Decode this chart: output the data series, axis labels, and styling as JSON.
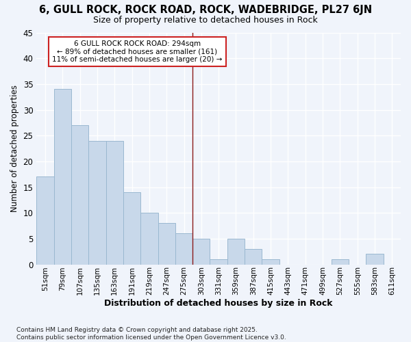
{
  "title1": "6, GULL ROCK, ROCK ROAD, ROCK, WADEBRIDGE, PL27 6JN",
  "title2": "Size of property relative to detached houses in Rock",
  "xlabel": "Distribution of detached houses by size in Rock",
  "ylabel": "Number of detached properties",
  "categories": [
    "51sqm",
    "79sqm",
    "107sqm",
    "135sqm",
    "163sqm",
    "191sqm",
    "219sqm",
    "247sqm",
    "275sqm",
    "303sqm",
    "331sqm",
    "359sqm",
    "387sqm",
    "415sqm",
    "443sqm",
    "471sqm",
    "499sqm",
    "527sqm",
    "555sqm",
    "583sqm",
    "611sqm"
  ],
  "values": [
    17,
    34,
    27,
    24,
    24,
    14,
    10,
    8,
    6,
    5,
    1,
    5,
    3,
    1,
    0,
    0,
    0,
    1,
    0,
    2,
    0
  ],
  "bar_color": "#c8d8ea",
  "bar_edge_color": "#9ab8d0",
  "background_color": "#f0f4fb",
  "plot_bg_color": "#f0f4fb",
  "grid_color": "#ffffff",
  "vline_color": "#8b1a1a",
  "vline_x_index": 9,
  "annotation_text": "6 GULL ROCK ROCK ROAD: 294sqm\n← 89% of detached houses are smaller (161)\n11% of semi-detached houses are larger (20) →",
  "annotation_box_facecolor": "#ffffff",
  "annotation_box_edgecolor": "#cc2222",
  "ylim": [
    0,
    45
  ],
  "yticks": [
    0,
    5,
    10,
    15,
    20,
    25,
    30,
    35,
    40,
    45
  ],
  "footer": "Contains HM Land Registry data © Crown copyright and database right 2025.\nContains public sector information licensed under the Open Government Licence v3.0."
}
